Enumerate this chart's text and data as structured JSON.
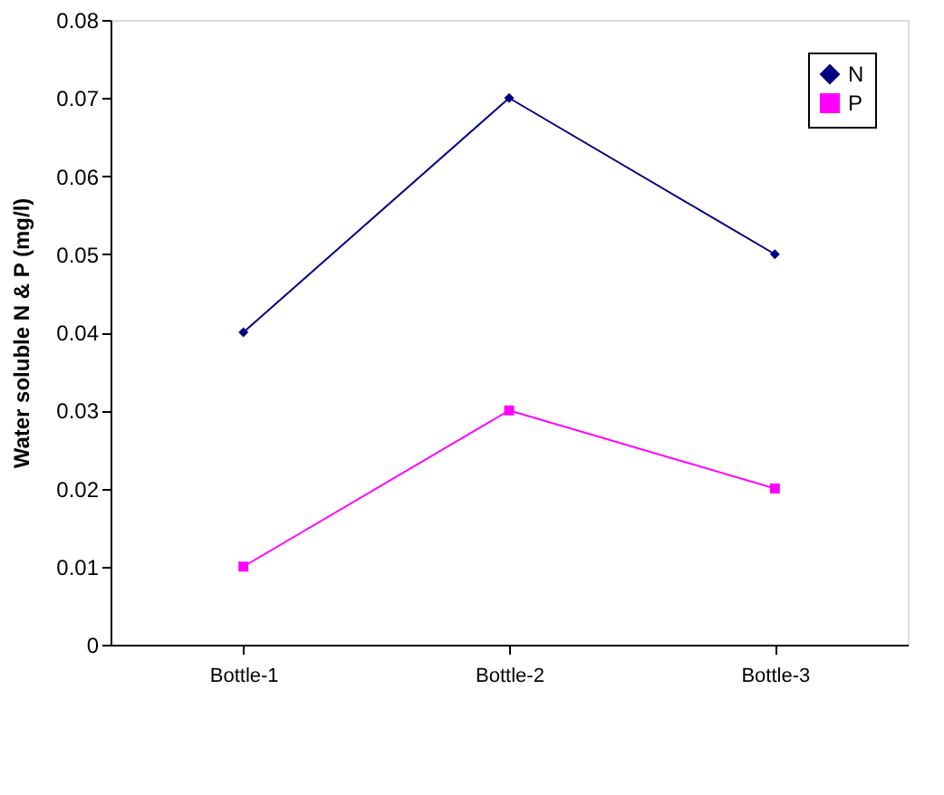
{
  "chart_data": {
    "type": "line",
    "ylabel": "Water soluble N & P (mg/l)",
    "categories": [
      "Bottle-1",
      "Bottle-2",
      "Bottle-3"
    ],
    "series": [
      {
        "name": "N",
        "color": "#000080",
        "values": [
          0.04,
          0.07,
          0.05
        ],
        "marker": "diamond"
      },
      {
        "name": "P",
        "color": "#ff00ff",
        "values": [
          0.01,
          0.03,
          0.02
        ],
        "marker": "square"
      }
    ],
    "ylim": [
      0,
      0.08
    ],
    "yticks": [
      0,
      0.01,
      0.02,
      0.03,
      0.04,
      0.05,
      0.06,
      0.07,
      0.08
    ],
    "grid": false,
    "legend": "top right"
  }
}
